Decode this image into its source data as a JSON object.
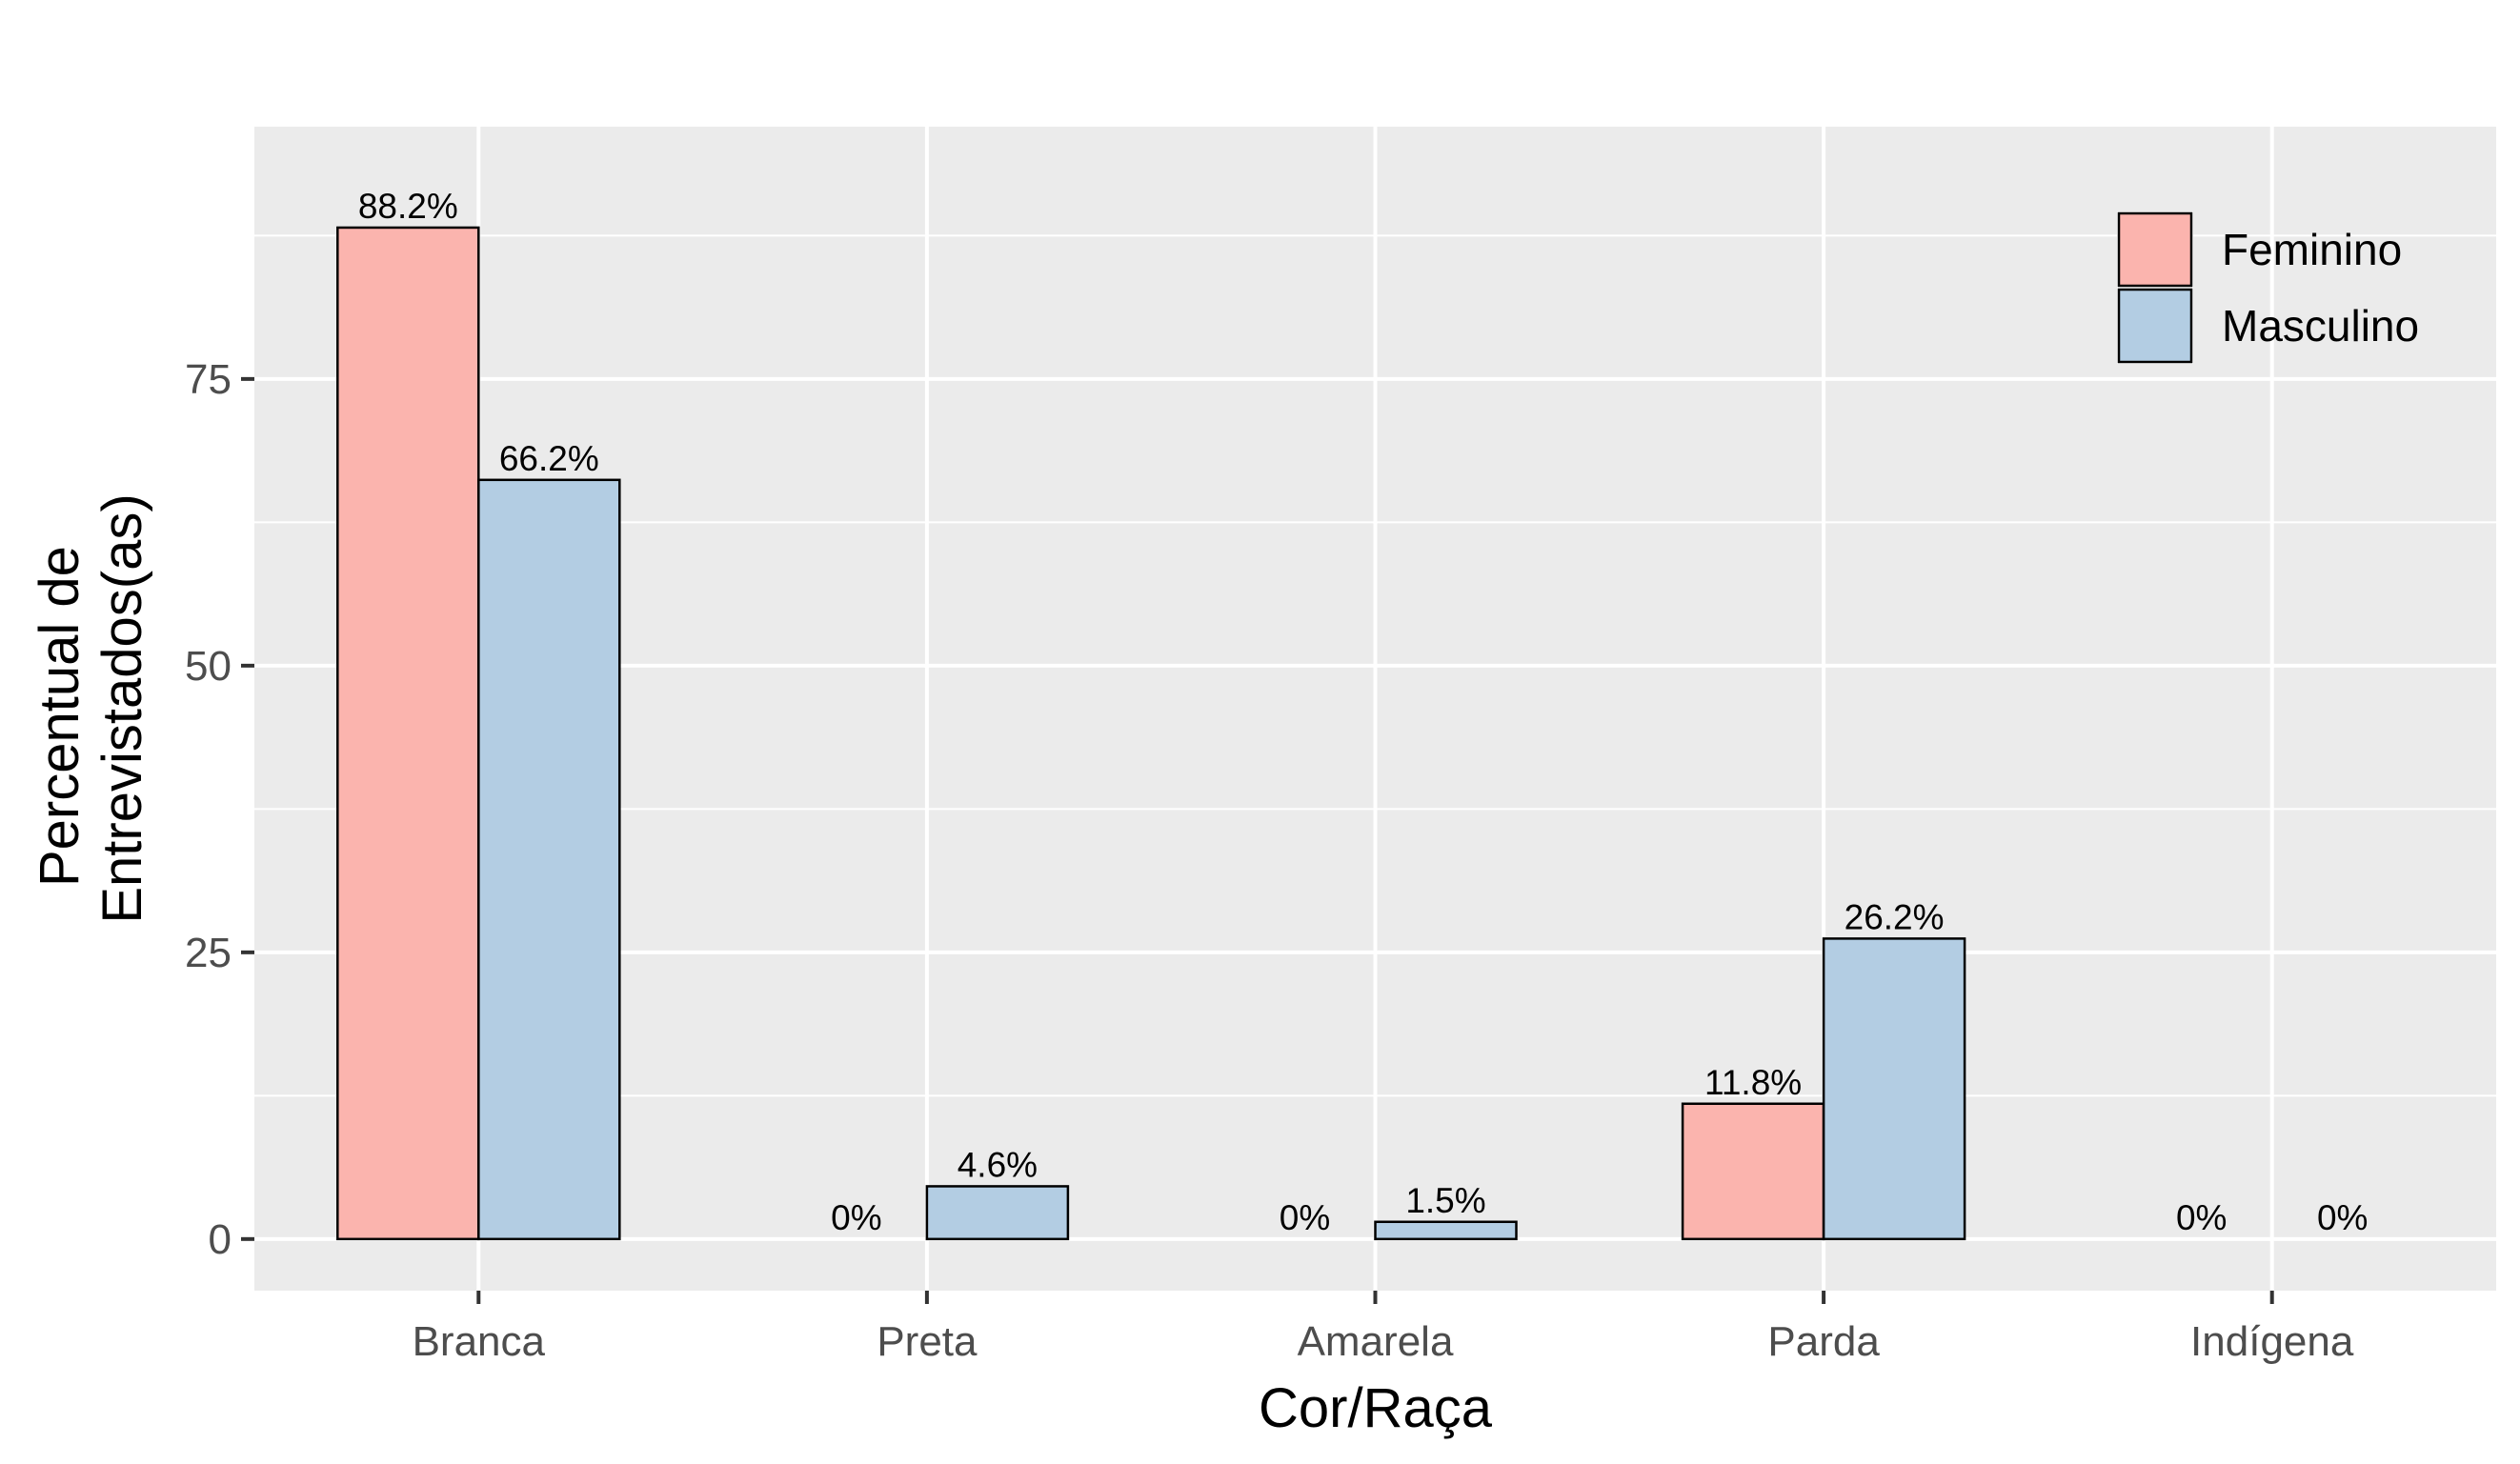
{
  "chart_data": {
    "type": "bar",
    "categories": [
      "Branca",
      "Preta",
      "Amarela",
      "Parda",
      "Indígena"
    ],
    "series": [
      {
        "name": "Feminino",
        "values": [
          88.2,
          0,
          0,
          11.8,
          0
        ],
        "labels": [
          "88.2%",
          "0%",
          "0%",
          "11.8%",
          "0%"
        ],
        "color": "#fbb4ae"
      },
      {
        "name": "Masculino",
        "values": [
          66.2,
          4.6,
          1.5,
          26.2,
          0
        ],
        "labels": [
          "66.2%",
          "4.6%",
          "1.5%",
          "26.2%",
          "0%"
        ],
        "color": "#b3cde3"
      }
    ],
    "xlabel": "Cor/Raça",
    "ylabel_lines": [
      "Percentual de",
      "Entrevistados(as)"
    ],
    "yticks": [
      0,
      25,
      50,
      75
    ],
    "ylim": [
      -4.5,
      97
    ],
    "grid": true,
    "legend_position": "top-right",
    "panel_color": "#ebebeb",
    "grid_color": "#ffffff",
    "bar_outline_color": "#000000"
  }
}
